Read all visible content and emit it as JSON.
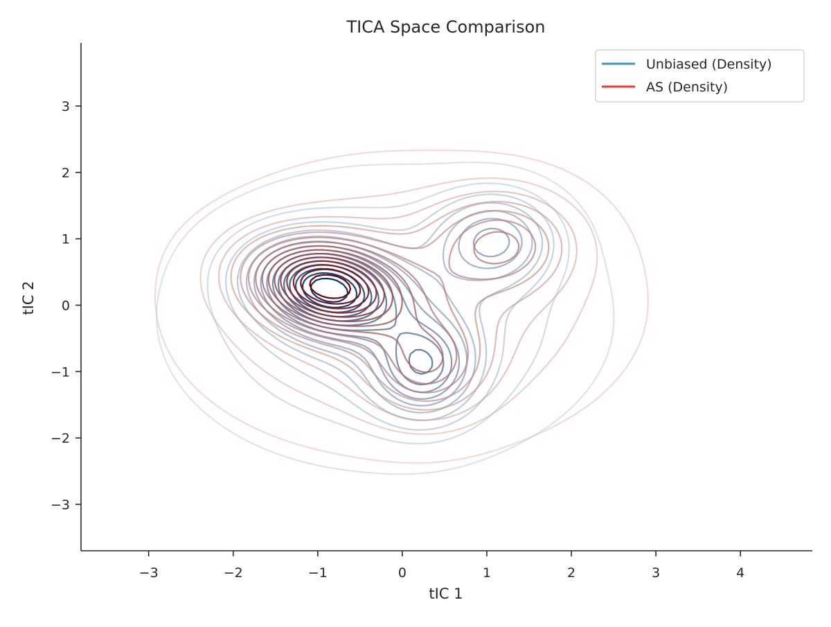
{
  "chart_data": {
    "type": "contour",
    "title": "TICA Space Comparison",
    "xlabel": "tIC 1",
    "ylabel": "tIC 2",
    "xlim": [
      -3.8,
      4.85
    ],
    "ylim": [
      -3.7,
      3.95
    ],
    "xticks": [
      -3,
      -2,
      -1,
      0,
      1,
      2,
      3,
      4
    ],
    "yticks": [
      -3,
      -2,
      -1,
      0,
      1,
      2,
      3
    ],
    "xtick_labels": [
      "−3",
      "−2",
      "−1",
      "0",
      "1",
      "2",
      "3",
      "4"
    ],
    "ytick_labels": [
      "−3",
      "−2",
      "−1",
      "0",
      "1",
      "2",
      "3"
    ],
    "grid": false,
    "legend_position": "top-right",
    "series": [
      {
        "name": "Unbiased (Density)",
        "legend_color": "#4292c6",
        "colormap": "Blues",
        "color_light": "#deebf7",
        "color_dark": "#08306b",
        "levels": 15,
        "components": [
          {
            "weight": 0.55,
            "mx": -0.9,
            "my": 0.25,
            "sx": 0.55,
            "sy": 0.45,
            "rho": -0.2
          },
          {
            "weight": 0.3,
            "mx": 0.25,
            "my": -0.95,
            "sx": 0.4,
            "sy": 0.5,
            "rho": 0.0
          },
          {
            "weight": 0.25,
            "mx": 1.1,
            "my": 1.0,
            "sx": 0.45,
            "sy": 0.45,
            "rho": 0.0
          },
          {
            "weight": 0.18,
            "mx": -0.2,
            "my": -0.2,
            "sx": 1.4,
            "sy": 1.2,
            "rho": 0.0
          }
        ]
      },
      {
        "name": "AS (Density)",
        "legend_color": "#ef3b2c",
        "colormap": "Reds",
        "color_light": "#fee0d2",
        "color_dark": "#67000d",
        "levels": 15,
        "components": [
          {
            "weight": 0.55,
            "mx": -0.9,
            "my": 0.3,
            "sx": 0.6,
            "sy": 0.45,
            "rho": -0.2
          },
          {
            "weight": 0.22,
            "mx": 0.3,
            "my": -0.9,
            "sx": 0.45,
            "sy": 0.5,
            "rho": 0.0
          },
          {
            "weight": 0.22,
            "mx": 1.2,
            "my": 0.95,
            "sx": 0.55,
            "sy": 0.5,
            "rho": 0.0
          },
          {
            "weight": 0.18,
            "mx": 0.0,
            "my": 0.0,
            "sx": 1.5,
            "sy": 1.2,
            "rho": 0.0
          }
        ]
      }
    ]
  }
}
